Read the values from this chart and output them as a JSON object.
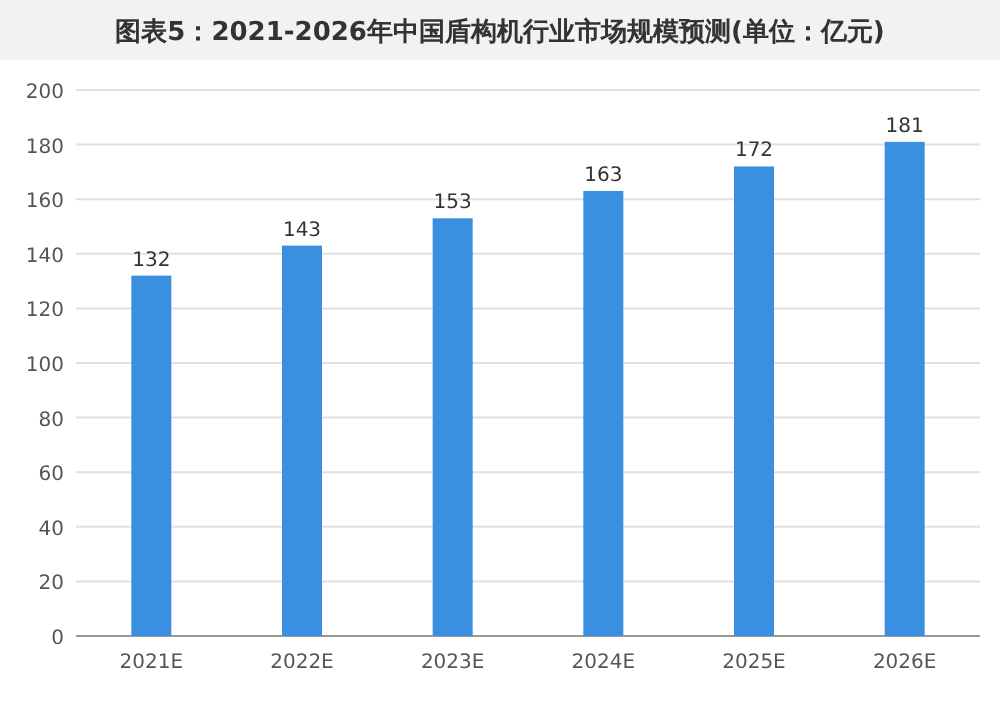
{
  "chart_data": {
    "type": "bar",
    "title": "图表5：2021-2026年中国盾构机行业市场规模预测(单位：亿元)",
    "categories": [
      "2021E",
      "2022E",
      "2023E",
      "2024E",
      "2025E",
      "2026E"
    ],
    "values": [
      132,
      143,
      153,
      163,
      172,
      181
    ],
    "color": "#3b8fe0",
    "ylim": [
      0,
      200
    ],
    "yticks": [
      0,
      20,
      40,
      60,
      80,
      100,
      120,
      140,
      160,
      180,
      200
    ],
    "grid": "y",
    "data_labels": true
  }
}
